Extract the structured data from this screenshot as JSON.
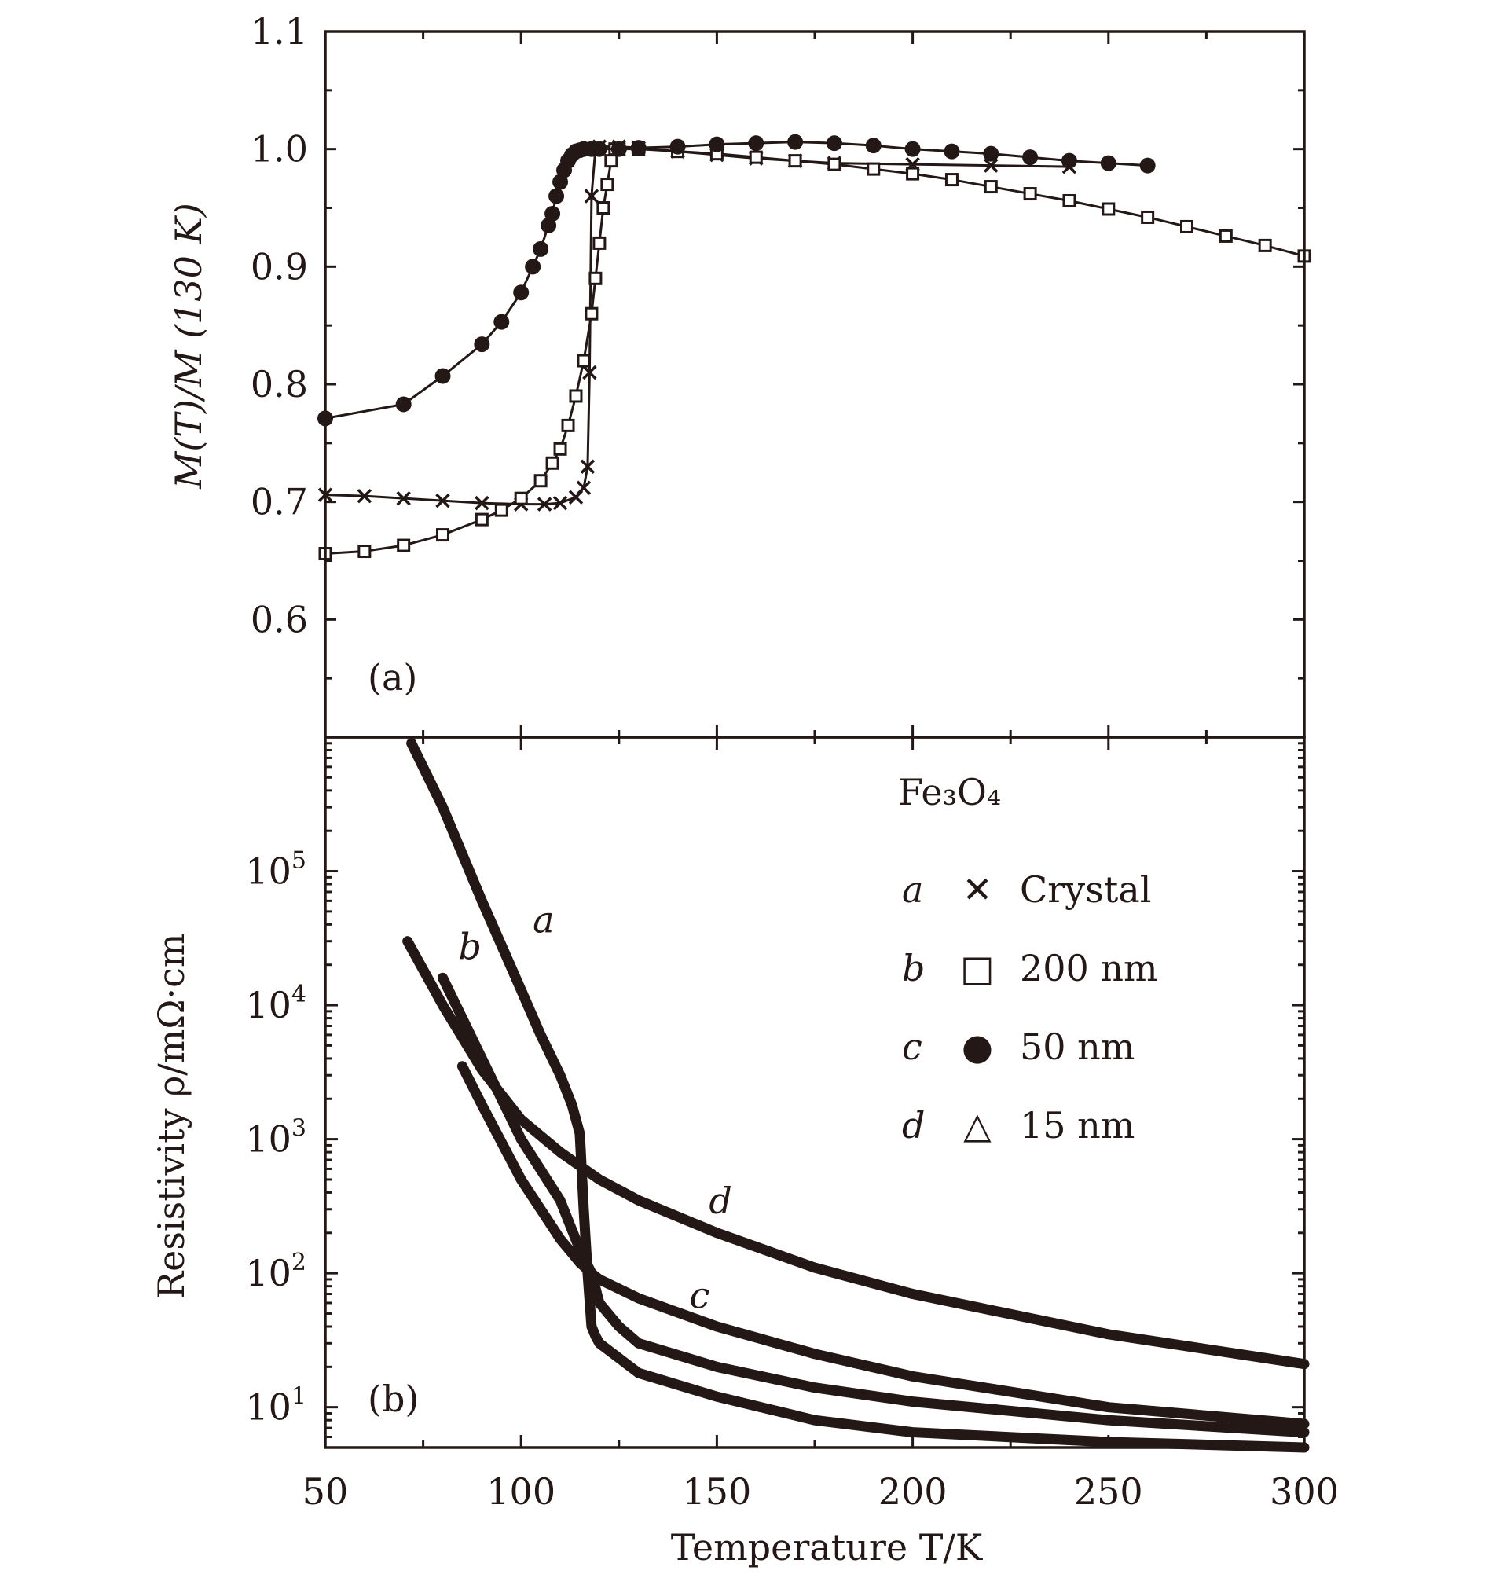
{
  "chart_data": [
    {
      "panel_label": "(a)",
      "type": "line",
      "xlim": [
        50,
        300
      ],
      "ylim": [
        0.5,
        1.1
      ],
      "y_ticks": [
        "0.6",
        "0.7",
        "0.8",
        "0.9",
        "1.0",
        "1.1"
      ],
      "x_ticks_shown": false,
      "ylabel": "M(T)/M (130 K)",
      "series": [
        {
          "marker": "cross",
          "x": [
            50,
            60,
            70,
            80,
            90,
            100,
            106,
            110,
            114,
            116,
            117,
            117.5,
            118,
            119,
            120,
            125,
            130,
            140,
            150,
            160,
            170,
            180,
            200,
            220,
            240
          ],
          "y": [
            0.706,
            0.705,
            0.703,
            0.701,
            0.699,
            0.698,
            0.698,
            0.699,
            0.704,
            0.712,
            0.73,
            0.81,
            0.96,
            1.0,
            1.002,
            1.002,
            1.001,
            0.998,
            0.995,
            0.992,
            0.99,
            0.988,
            0.987,
            0.986,
            0.985
          ]
        },
        {
          "marker": "square",
          "x": [
            50,
            60,
            70,
            80,
            90,
            95,
            100,
            105,
            108,
            110,
            112,
            114,
            116,
            118,
            119,
            120,
            121,
            122,
            123,
            124,
            125,
            130,
            140,
            150,
            160,
            170,
            180,
            190,
            200,
            210,
            220,
            230,
            240,
            250,
            260,
            270,
            280,
            290,
            300
          ],
          "y": [
            0.656,
            0.658,
            0.663,
            0.672,
            0.685,
            0.693,
            0.703,
            0.718,
            0.733,
            0.745,
            0.765,
            0.79,
            0.82,
            0.86,
            0.89,
            0.92,
            0.95,
            0.97,
            0.99,
            1.0,
            1.0,
            1.0,
            0.998,
            0.996,
            0.993,
            0.99,
            0.987,
            0.983,
            0.979,
            0.974,
            0.968,
            0.962,
            0.956,
            0.949,
            0.942,
            0.934,
            0.926,
            0.918,
            0.909
          ]
        },
        {
          "marker": "circle",
          "x": [
            50,
            70,
            80,
            90,
            95,
            100,
            103,
            105,
            107,
            108,
            109,
            110,
            111,
            112,
            113,
            114,
            115,
            116,
            118,
            120,
            125,
            130,
            140,
            150,
            160,
            170,
            180,
            190,
            200,
            210,
            220,
            230,
            240,
            250,
            260
          ],
          "y": [
            0.771,
            0.783,
            0.807,
            0.834,
            0.853,
            0.878,
            0.9,
            0.915,
            0.935,
            0.945,
            0.96,
            0.972,
            0.982,
            0.99,
            0.995,
            0.998,
            0.999,
            1.0,
            1.0,
            1.0,
            1.0,
            1.001,
            1.002,
            1.004,
            1.005,
            1.006,
            1.005,
            1.003,
            1.0,
            0.998,
            0.996,
            0.993,
            0.99,
            0.988,
            0.986
          ]
        }
      ]
    },
    {
      "panel_label": "(b)",
      "type": "line",
      "xlim": [
        50,
        300
      ],
      "y_scale": "log",
      "ylim": [
        5,
        1000000
      ],
      "y_ticks": [
        {
          "base": "10",
          "exp": "1",
          "value": 10
        },
        {
          "base": "10",
          "exp": "2",
          "value": 100
        },
        {
          "base": "10",
          "exp": "3",
          "value": 1000
        },
        {
          "base": "10",
          "exp": "4",
          "value": 10000
        },
        {
          "base": "10",
          "exp": "5",
          "value": 100000
        }
      ],
      "x_ticks": [
        "50",
        "100",
        "150",
        "200",
        "250",
        "300"
      ],
      "xlabel": "Temperature T/K",
      "ylabel": "Resistivity ρ/mΩ·cm",
      "material": "Fe₃O₄",
      "legend": [
        {
          "letter": "a",
          "symbol": "✕",
          "text": "Crystal"
        },
        {
          "letter": "b",
          "symbol": "□",
          "text": "200 nm"
        },
        {
          "letter": "c",
          "symbol": "●",
          "text": "50 nm"
        },
        {
          "letter": "d",
          "symbol": "△",
          "text": "15 nm"
        }
      ],
      "series": [
        {
          "name": "a",
          "x": [
            72,
            80,
            90,
            100,
            105,
            110,
            113,
            115,
            116,
            117,
            118,
            119,
            120,
            130,
            150,
            175,
            200,
            250,
            300
          ],
          "y": [
            900000,
            300000,
            60000,
            13000,
            6000,
            3000,
            1800,
            1100,
            300,
            100,
            40,
            34,
            30,
            18,
            12,
            8,
            6.5,
            5.5,
            5.0
          ],
          "label_at": [
            103,
            35000
          ]
        },
        {
          "name": "b",
          "x": [
            80,
            90,
            100,
            110,
            115,
            118,
            120,
            125,
            130,
            150,
            175,
            200,
            250,
            300
          ],
          "y": [
            16000,
            4000,
            1000,
            350,
            150,
            100,
            60,
            40,
            30,
            20,
            14,
            11,
            8,
            6.5
          ],
          "label_at": [
            84,
            22000
          ]
        },
        {
          "name": "c",
          "x": [
            85,
            90,
            100,
            110,
            115,
            118,
            120,
            130,
            150,
            175,
            200,
            250,
            300
          ],
          "y": [
            3500,
            1800,
            500,
            180,
            120,
            100,
            90,
            65,
            40,
            25,
            17,
            10,
            7.5
          ],
          "label_at": [
            143,
            55
          ]
        },
        {
          "name": "d",
          "x": [
            71,
            80,
            90,
            100,
            110,
            120,
            130,
            150,
            175,
            200,
            250,
            300
          ],
          "y": [
            30000,
            10000,
            3300,
            1400,
            800,
            500,
            350,
            200,
            110,
            70,
            35,
            21
          ],
          "label_at": [
            148,
            280
          ]
        }
      ]
    }
  ]
}
